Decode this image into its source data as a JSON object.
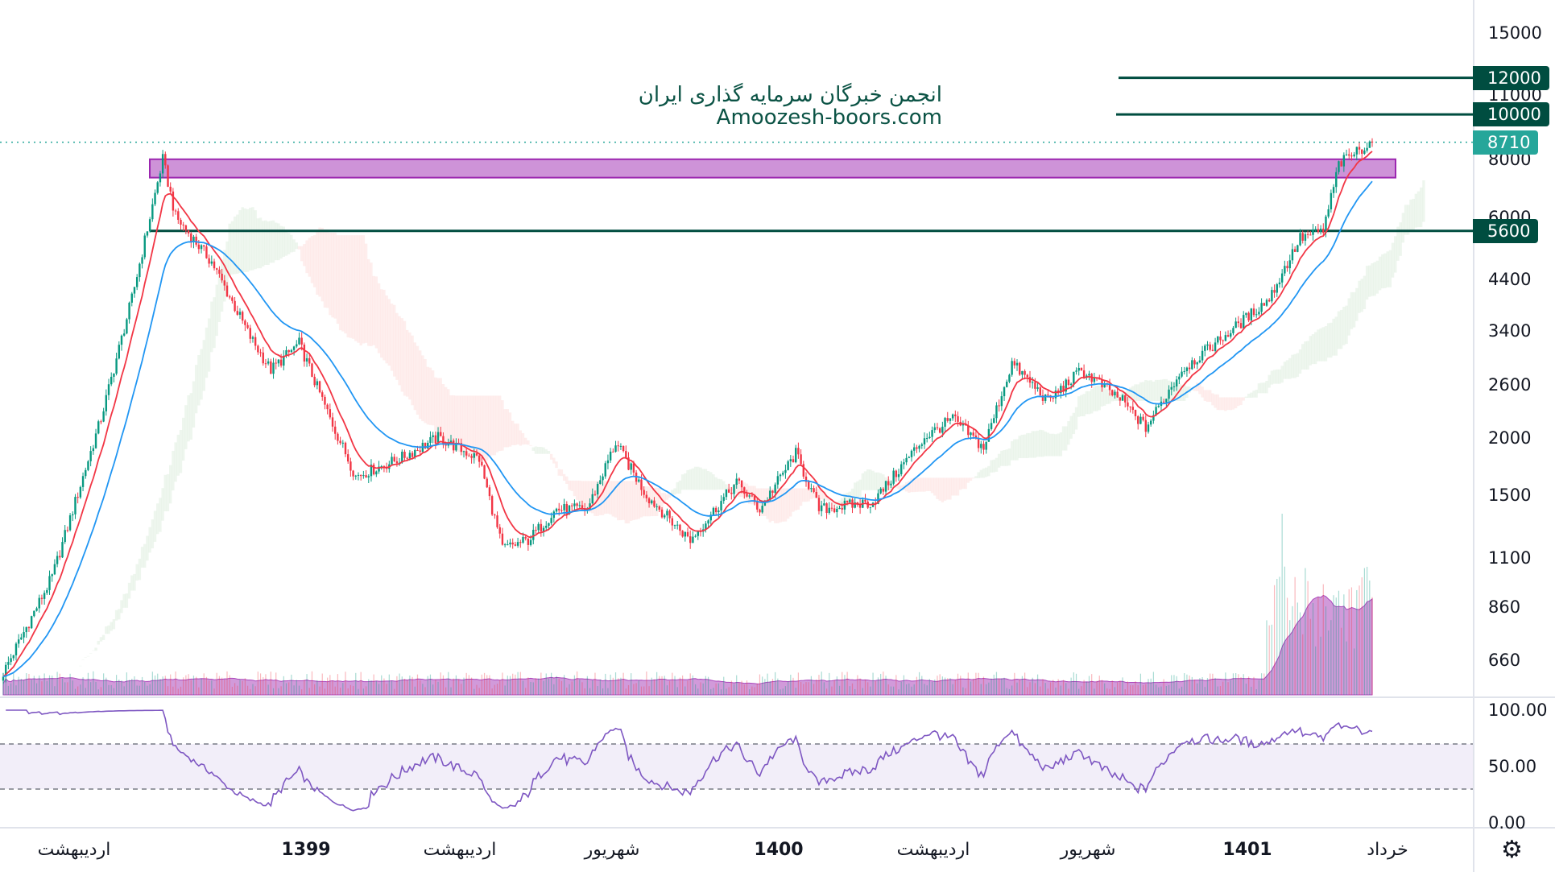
{
  "watermark": {
    "line1": "انجمن خبرگان سرمایه گذاری ایران",
    "line2": "Amoozesh-boors.com"
  },
  "price_axis": {
    "labels": [
      "15000",
      "11000",
      "8000",
      "6000",
      "4400",
      "3400",
      "2600",
      "2000",
      "1500",
      "1100",
      "860",
      "660"
    ]
  },
  "price_tags": [
    {
      "label": "12000",
      "value": 12000,
      "color": "#004d40"
    },
    {
      "label": "10000",
      "value": 10000,
      "color": "#004d40"
    },
    {
      "label": "8710",
      "value": 8710,
      "color": "#26a69a"
    },
    {
      "label": "5600",
      "value": 5600,
      "color": "#004d40"
    }
  ],
  "rsi_axis": {
    "labels": [
      "100.00",
      "50.00",
      "0.00"
    ]
  },
  "time_axis": {
    "labels": [
      {
        "text": "اردیبهشت",
        "year": false
      },
      {
        "text": "1399",
        "year": true
      },
      {
        "text": "اردیبهشت",
        "year": false
      },
      {
        "text": "شهریور",
        "year": false
      },
      {
        "text": "1400",
        "year": true
      },
      {
        "text": "اردیبهشت",
        "year": false
      },
      {
        "text": "شهریور",
        "year": false
      },
      {
        "text": "1401",
        "year": true
      },
      {
        "text": "خرداد",
        "year": false
      }
    ]
  },
  "settings_icon": "gear-icon",
  "chart_data": {
    "type": "candlestick",
    "scale": "log",
    "ylim": [
      600,
      16000
    ],
    "rsi_ylim": [
      0,
      100
    ],
    "rsi_bands": [
      30,
      70
    ],
    "colors": {
      "up": "#089981",
      "down": "#f23645",
      "ma_fast": "#f23645",
      "ma_slow": "#2196f3",
      "volume_ma": "#ab47bc",
      "rsi": "#7e57c2",
      "zone": "#ce93d8"
    },
    "resistance_zone": [
      7300,
      8000
    ],
    "horizontal_levels": [
      12000,
      10000,
      5600
    ],
    "last_price": 8710,
    "price_keypoints": [
      [
        0,
        620
      ],
      [
        19,
        1000
      ],
      [
        38,
        2200
      ],
      [
        50,
        4000
      ],
      [
        62,
        8000
      ],
      [
        67,
        6000
      ],
      [
        81,
        4800
      ],
      [
        96,
        3300
      ],
      [
        104,
        2800
      ],
      [
        115,
        3200
      ],
      [
        127,
        2200
      ],
      [
        137,
        1650
      ],
      [
        154,
        1800
      ],
      [
        169,
        2000
      ],
      [
        185,
        1800
      ],
      [
        194,
        1150
      ],
      [
        204,
        1200
      ],
      [
        215,
        1400
      ],
      [
        227,
        1400
      ],
      [
        238,
        1950
      ],
      [
        250,
        1500
      ],
      [
        267,
        1200
      ],
      [
        285,
        1600
      ],
      [
        294,
        1400
      ],
      [
        308,
        1850
      ],
      [
        317,
        1400
      ],
      [
        338,
        1450
      ],
      [
        358,
        2000
      ],
      [
        369,
        2200
      ],
      [
        381,
        1900
      ],
      [
        392,
        2900
      ],
      [
        406,
        2400
      ],
      [
        419,
        2800
      ],
      [
        435,
        2400
      ],
      [
        444,
        2100
      ],
      [
        458,
        2800
      ],
      [
        477,
        3400
      ],
      [
        492,
        4000
      ],
      [
        504,
        5400
      ],
      [
        513,
        5600
      ],
      [
        519,
        7800
      ],
      [
        527,
        8400
      ],
      [
        532,
        8710
      ]
    ]
  }
}
